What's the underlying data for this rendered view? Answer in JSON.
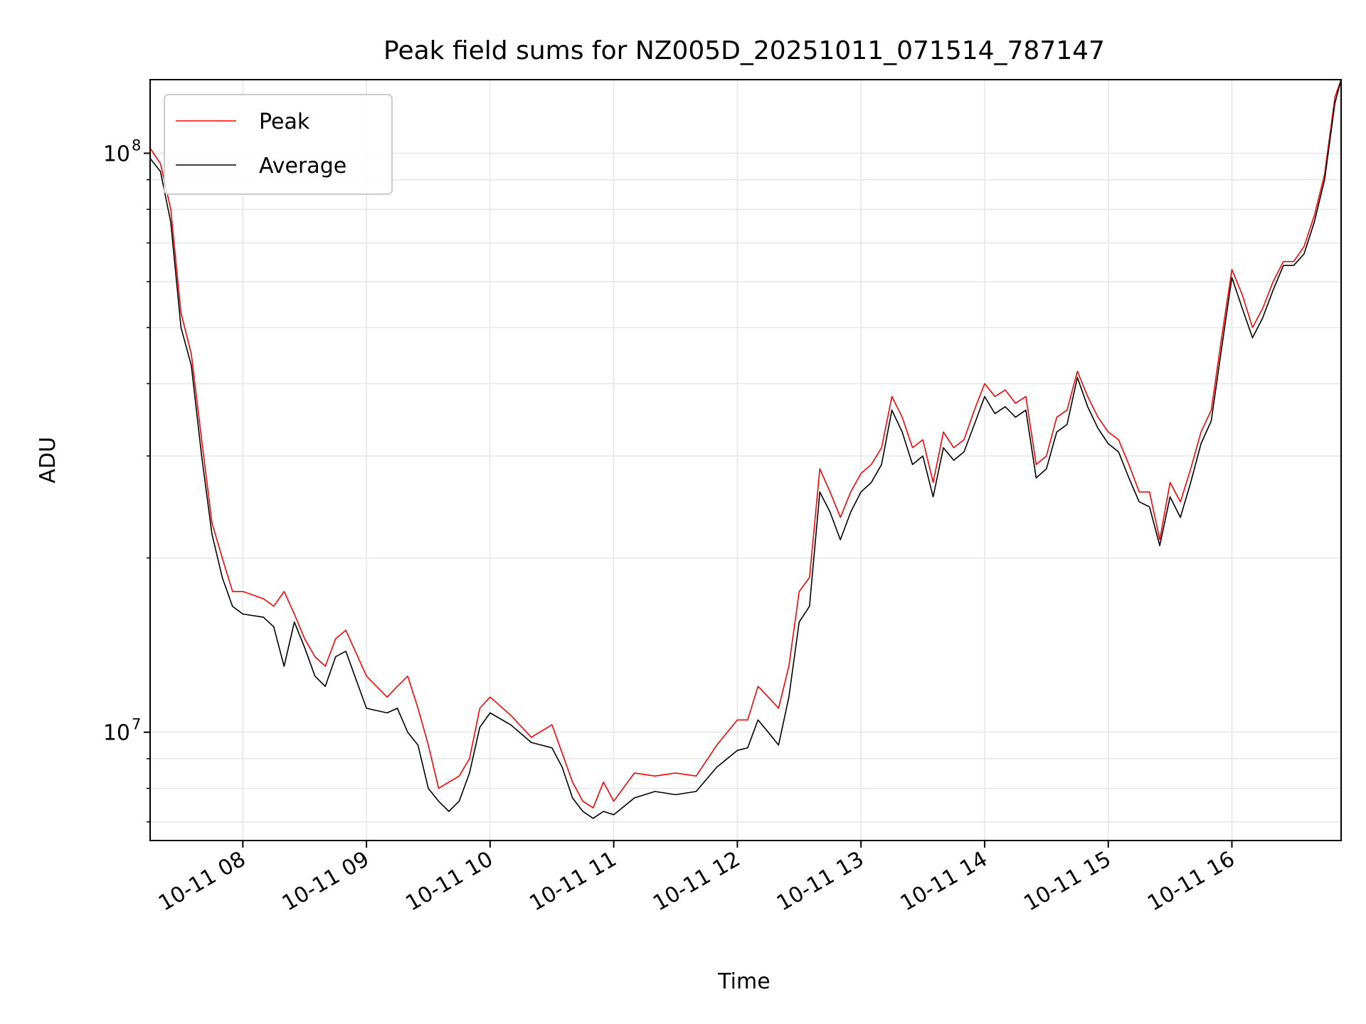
{
  "chart_data": {
    "type": "line",
    "title": "Peak field sums for NZ005D_20251011_071514_787147",
    "xlabel": "Time",
    "ylabel": "ADU",
    "x_scale": "time",
    "y_scale": "log",
    "xlim": [
      "2025-10-11 07:15",
      "2025-10-11 16:53"
    ],
    "ylim": [
      6500000,
      134000000
    ],
    "x_ticks": [
      {
        "value": "2025-10-11 08:00",
        "label": "10-11 08"
      },
      {
        "value": "2025-10-11 09:00",
        "label": "10-11 09"
      },
      {
        "value": "2025-10-11 10:00",
        "label": "10-11 10"
      },
      {
        "value": "2025-10-11 11:00",
        "label": "10-11 11"
      },
      {
        "value": "2025-10-11 12:00",
        "label": "10-11 12"
      },
      {
        "value": "2025-10-11 13:00",
        "label": "10-11 13"
      },
      {
        "value": "2025-10-11 14:00",
        "label": "10-11 14"
      },
      {
        "value": "2025-10-11 15:00",
        "label": "10-11 15"
      },
      {
        "value": "2025-10-11 16:00",
        "label": "10-11 16"
      }
    ],
    "y_major_ticks": [
      {
        "value": 10000000,
        "base": "10",
        "exp": "7"
      },
      {
        "value": 100000000,
        "base": "10",
        "exp": "8"
      }
    ],
    "y_minor_ticks": [
      7000000,
      8000000,
      9000000,
      20000000,
      30000000,
      40000000,
      50000000,
      60000000,
      70000000,
      80000000,
      90000000
    ],
    "grid": true,
    "legend_position": "top-left",
    "colors": {
      "peak": "#ff0000",
      "average": "#000000",
      "grid": "#e6e6e6"
    },
    "series": [
      {
        "name": "Peak",
        "color": "#ff0000",
        "x": [
          "2025-10-11 07:15",
          "2025-10-11 07:20",
          "2025-10-11 07:25",
          "2025-10-11 07:30",
          "2025-10-11 07:35",
          "2025-10-11 07:40",
          "2025-10-11 07:45",
          "2025-10-11 07:50",
          "2025-10-11 07:55",
          "2025-10-11 08:00",
          "2025-10-11 08:10",
          "2025-10-11 08:15",
          "2025-10-11 08:20",
          "2025-10-11 08:25",
          "2025-10-11 08:30",
          "2025-10-11 08:35",
          "2025-10-11 08:40",
          "2025-10-11 08:45",
          "2025-10-11 08:50",
          "2025-10-11 09:00",
          "2025-10-11 09:10",
          "2025-10-11 09:15",
          "2025-10-11 09:20",
          "2025-10-11 09:25",
          "2025-10-11 09:30",
          "2025-10-11 09:35",
          "2025-10-11 09:40",
          "2025-10-11 09:45",
          "2025-10-11 09:50",
          "2025-10-11 09:55",
          "2025-10-11 10:00",
          "2025-10-11 10:10",
          "2025-10-11 10:20",
          "2025-10-11 10:30",
          "2025-10-11 10:35",
          "2025-10-11 10:40",
          "2025-10-11 10:45",
          "2025-10-11 10:50",
          "2025-10-11 10:55",
          "2025-10-11 11:00",
          "2025-10-11 11:10",
          "2025-10-11 11:20",
          "2025-10-11 11:30",
          "2025-10-11 11:40",
          "2025-10-11 11:50",
          "2025-10-11 12:00",
          "2025-10-11 12:05",
          "2025-10-11 12:10",
          "2025-10-11 12:15",
          "2025-10-11 12:20",
          "2025-10-11 12:25",
          "2025-10-11 12:30",
          "2025-10-11 12:35",
          "2025-10-11 12:40",
          "2025-10-11 12:45",
          "2025-10-11 12:50",
          "2025-10-11 12:55",
          "2025-10-11 13:00",
          "2025-10-11 13:05",
          "2025-10-11 13:10",
          "2025-10-11 13:15",
          "2025-10-11 13:20",
          "2025-10-11 13:25",
          "2025-10-11 13:30",
          "2025-10-11 13:35",
          "2025-10-11 13:40",
          "2025-10-11 13:45",
          "2025-10-11 13:50",
          "2025-10-11 13:55",
          "2025-10-11 14:00",
          "2025-10-11 14:05",
          "2025-10-11 14:10",
          "2025-10-11 14:15",
          "2025-10-11 14:20",
          "2025-10-11 14:25",
          "2025-10-11 14:30",
          "2025-10-11 14:35",
          "2025-10-11 14:40",
          "2025-10-11 14:45",
          "2025-10-11 14:50",
          "2025-10-11 14:55",
          "2025-10-11 15:00",
          "2025-10-11 15:05",
          "2025-10-11 15:10",
          "2025-10-11 15:15",
          "2025-10-11 15:20",
          "2025-10-11 15:25",
          "2025-10-11 15:30",
          "2025-10-11 15:35",
          "2025-10-11 15:40",
          "2025-10-11 15:45",
          "2025-10-11 15:50",
          "2025-10-11 15:55",
          "2025-10-11 16:00",
          "2025-10-11 16:05",
          "2025-10-11 16:10",
          "2025-10-11 16:15",
          "2025-10-11 16:20",
          "2025-10-11 16:25",
          "2025-10-11 16:30",
          "2025-10-11 16:35",
          "2025-10-11 16:40",
          "2025-10-11 16:45",
          "2025-10-11 16:50",
          "2025-10-11 16:53"
        ],
        "values": [
          102000000,
          96000000,
          80000000,
          53000000,
          45000000,
          32000000,
          23000000,
          20000000,
          17500000,
          17500000,
          17000000,
          16500000,
          17500000,
          16000000,
          14500000,
          13500000,
          13000000,
          14500000,
          15000000,
          12500000,
          11500000,
          12000000,
          12500000,
          11000000,
          9500000,
          8000000,
          8200000,
          8400000,
          9000000,
          11000000,
          11500000,
          10700000,
          9800000,
          10300000,
          9200000,
          8200000,
          7600000,
          7400000,
          8200000,
          7600000,
          8500000,
          8400000,
          8500000,
          8400000,
          9500000,
          10500000,
          10500000,
          12000000,
          11500000,
          11000000,
          13000000,
          17500000,
          18500000,
          28500000,
          26000000,
          23500000,
          26000000,
          28000000,
          29000000,
          31000000,
          38000000,
          35000000,
          31000000,
          32000000,
          27000000,
          33000000,
          31000000,
          32000000,
          36000000,
          40000000,
          38000000,
          39000000,
          37000000,
          38000000,
          29000000,
          30000000,
          35000000,
          36000000,
          42000000,
          38000000,
          35000000,
          33000000,
          32000000,
          29000000,
          26000000,
          26000000,
          21500000,
          27000000,
          25000000,
          28500000,
          33000000,
          36000000,
          48000000,
          63000000,
          57000000,
          50000000,
          54000000,
          60000000,
          65000000,
          65000000,
          69000000,
          78000000,
          92000000,
          125000000,
          134000000
        ]
      },
      {
        "name": "Average",
        "color": "#000000",
        "x": [
          "2025-10-11 07:15",
          "2025-10-11 07:20",
          "2025-10-11 07:25",
          "2025-10-11 07:30",
          "2025-10-11 07:35",
          "2025-10-11 07:40",
          "2025-10-11 07:45",
          "2025-10-11 07:50",
          "2025-10-11 07:55",
          "2025-10-11 08:00",
          "2025-10-11 08:10",
          "2025-10-11 08:15",
          "2025-10-11 08:20",
          "2025-10-11 08:25",
          "2025-10-11 08:30",
          "2025-10-11 08:35",
          "2025-10-11 08:40",
          "2025-10-11 08:45",
          "2025-10-11 08:50",
          "2025-10-11 09:00",
          "2025-10-11 09:10",
          "2025-10-11 09:15",
          "2025-10-11 09:20",
          "2025-10-11 09:25",
          "2025-10-11 09:30",
          "2025-10-11 09:35",
          "2025-10-11 09:40",
          "2025-10-11 09:45",
          "2025-10-11 09:50",
          "2025-10-11 09:55",
          "2025-10-11 10:00",
          "2025-10-11 10:10",
          "2025-10-11 10:20",
          "2025-10-11 10:30",
          "2025-10-11 10:35",
          "2025-10-11 10:40",
          "2025-10-11 10:45",
          "2025-10-11 10:50",
          "2025-10-11 10:55",
          "2025-10-11 11:00",
          "2025-10-11 11:10",
          "2025-10-11 11:20",
          "2025-10-11 11:30",
          "2025-10-11 11:40",
          "2025-10-11 11:50",
          "2025-10-11 12:00",
          "2025-10-11 12:05",
          "2025-10-11 12:10",
          "2025-10-11 12:15",
          "2025-10-11 12:20",
          "2025-10-11 12:25",
          "2025-10-11 12:30",
          "2025-10-11 12:35",
          "2025-10-11 12:40",
          "2025-10-11 12:45",
          "2025-10-11 12:50",
          "2025-10-11 12:55",
          "2025-10-11 13:00",
          "2025-10-11 13:05",
          "2025-10-11 13:10",
          "2025-10-11 13:15",
          "2025-10-11 13:20",
          "2025-10-11 13:25",
          "2025-10-11 13:30",
          "2025-10-11 13:35",
          "2025-10-11 13:40",
          "2025-10-11 13:45",
          "2025-10-11 13:50",
          "2025-10-11 13:55",
          "2025-10-11 14:00",
          "2025-10-11 14:05",
          "2025-10-11 14:10",
          "2025-10-11 14:15",
          "2025-10-11 14:20",
          "2025-10-11 14:25",
          "2025-10-11 14:30",
          "2025-10-11 14:35",
          "2025-10-11 14:40",
          "2025-10-11 14:45",
          "2025-10-11 14:50",
          "2025-10-11 14:55",
          "2025-10-11 15:00",
          "2025-10-11 15:05",
          "2025-10-11 15:10",
          "2025-10-11 15:15",
          "2025-10-11 15:20",
          "2025-10-11 15:25",
          "2025-10-11 15:30",
          "2025-10-11 15:35",
          "2025-10-11 15:40",
          "2025-10-11 15:45",
          "2025-10-11 15:50",
          "2025-10-11 15:55",
          "2025-10-11 16:00",
          "2025-10-11 16:05",
          "2025-10-11 16:10",
          "2025-10-11 16:15",
          "2025-10-11 16:20",
          "2025-10-11 16:25",
          "2025-10-11 16:30",
          "2025-10-11 16:35",
          "2025-10-11 16:40",
          "2025-10-11 16:45",
          "2025-10-11 16:50",
          "2025-10-11 16:53"
        ],
        "values": [
          98000000,
          93000000,
          76000000,
          50000000,
          43000000,
          30000000,
          22000000,
          18500000,
          16500000,
          16000000,
          15800000,
          15200000,
          13000000,
          15500000,
          14000000,
          12500000,
          12000000,
          13500000,
          13800000,
          11000000,
          10800000,
          11000000,
          10000000,
          9500000,
          8000000,
          7600000,
          7300000,
          7600000,
          8500000,
          10200000,
          10800000,
          10300000,
          9600000,
          9400000,
          8700000,
          7700000,
          7300000,
          7100000,
          7300000,
          7200000,
          7700000,
          7900000,
          7800000,
          7900000,
          8700000,
          9300000,
          9400000,
          10500000,
          10000000,
          9500000,
          11500000,
          15500000,
          16500000,
          26000000,
          24000000,
          21500000,
          24000000,
          26000000,
          27000000,
          29000000,
          36000000,
          33000000,
          29000000,
          30000000,
          25500000,
          31000000,
          29500000,
          30500000,
          34000000,
          38000000,
          35500000,
          36500000,
          35000000,
          36000000,
          27500000,
          28500000,
          33000000,
          34000000,
          41000000,
          36500000,
          33500000,
          31500000,
          30500000,
          27500000,
          25000000,
          24500000,
          21000000,
          25500000,
          23500000,
          27000000,
          31500000,
          34500000,
          46000000,
          61000000,
          54000000,
          48000000,
          52000000,
          58000000,
          64000000,
          64000000,
          67000000,
          76000000,
          90000000,
          122000000,
          134000000
        ]
      }
    ]
  }
}
